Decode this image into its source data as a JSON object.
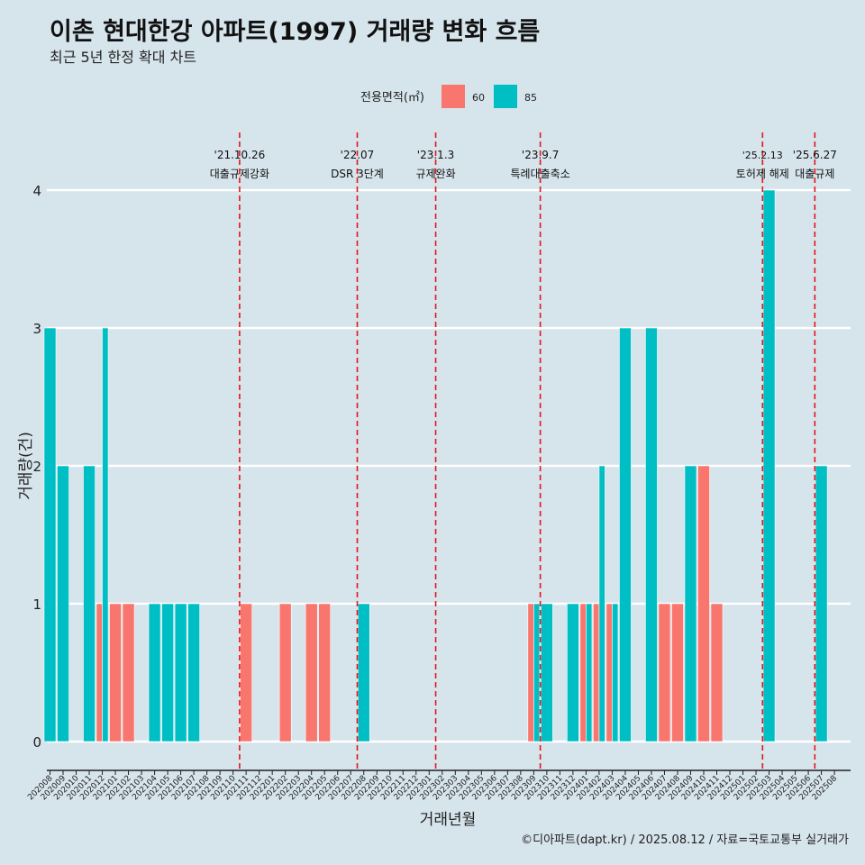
{
  "title": "이촌 현대한강 아파트(1997) 거래량 변화 흐름",
  "subtitle": "최근 5년 한정 확대 차트",
  "caption": "©디아파트(dapt.kr) / 2025.08.12 / 자료=국토교통부 실거래가",
  "legend": {
    "title": "전용면적(㎡)",
    "items": [
      {
        "label": "60",
        "color": "#f8766d"
      },
      {
        "label": "85",
        "color": "#00bfc4"
      }
    ]
  },
  "chart_data": {
    "type": "bar",
    "xlabel": "거래년월",
    "ylabel": "거래량(건)",
    "ylim": [
      0,
      4
    ],
    "yticks": [
      0,
      1,
      2,
      3,
      4
    ],
    "grid": "horizontal",
    "legend_position": "top",
    "categories": [
      "202008",
      "202009",
      "202010",
      "202011",
      "202012",
      "202101",
      "202102",
      "202103",
      "202104",
      "202105",
      "202106",
      "202107",
      "202108",
      "202109",
      "202110",
      "202111",
      "202112",
      "202201",
      "202202",
      "202203",
      "202204",
      "202205",
      "202206",
      "202207",
      "202208",
      "202209",
      "202210",
      "202211",
      "202212",
      "202301",
      "202302",
      "202303",
      "202304",
      "202305",
      "202306",
      "202307",
      "202308",
      "202309",
      "202310",
      "202311",
      "202312",
      "202401",
      "202402",
      "202403",
      "202404",
      "202405",
      "202406",
      "202407",
      "202408",
      "202409",
      "202410",
      "202411",
      "202412",
      "202501",
      "202502",
      "202503",
      "202504",
      "202505",
      "202506",
      "202507",
      "202508"
    ],
    "series": [
      {
        "name": "60",
        "color": "#f8766d",
        "values": [
          0,
          0,
          0,
          0,
          1,
          1,
          1,
          0,
          0,
          0,
          0,
          0,
          0,
          0,
          0,
          1,
          0,
          0,
          1,
          0,
          1,
          1,
          0,
          0,
          0,
          0,
          0,
          0,
          0,
          0,
          0,
          0,
          0,
          0,
          0,
          0,
          0,
          1,
          0,
          0,
          0,
          1,
          1,
          1,
          0,
          0,
          0,
          1,
          1,
          0,
          2,
          1,
          0,
          0,
          0,
          0,
          0,
          0,
          0,
          0,
          0
        ]
      },
      {
        "name": "85",
        "color": "#00bfc4",
        "values": [
          3,
          2,
          0,
          2,
          3,
          0,
          0,
          0,
          1,
          1,
          1,
          1,
          0,
          0,
          0,
          0,
          0,
          0,
          0,
          0,
          0,
          0,
          0,
          0,
          1,
          0,
          0,
          0,
          0,
          0,
          0,
          0,
          0,
          0,
          0,
          0,
          0,
          1,
          1,
          0,
          1,
          1,
          2,
          1,
          3,
          0,
          3,
          0,
          0,
          2,
          0,
          0,
          0,
          0,
          0,
          4,
          0,
          0,
          0,
          2,
          0
        ]
      }
    ],
    "events": [
      {
        "date": "'21.10.26",
        "label": "대출규제강화",
        "after": "202110"
      },
      {
        "date": "'22.07",
        "label": "DSR 3단계",
        "after": "202207"
      },
      {
        "date": "'23.1.3",
        "label": "규제완화",
        "after": "202301"
      },
      {
        "date": "'23.9.7",
        "label": "특례대출축소",
        "after": "202309"
      },
      {
        "date": "'25.2.13",
        "label": "토허제 해제",
        "after": "202502"
      },
      {
        "date": "'25.6.27",
        "label": "대출규제",
        "after": "202506"
      }
    ]
  }
}
